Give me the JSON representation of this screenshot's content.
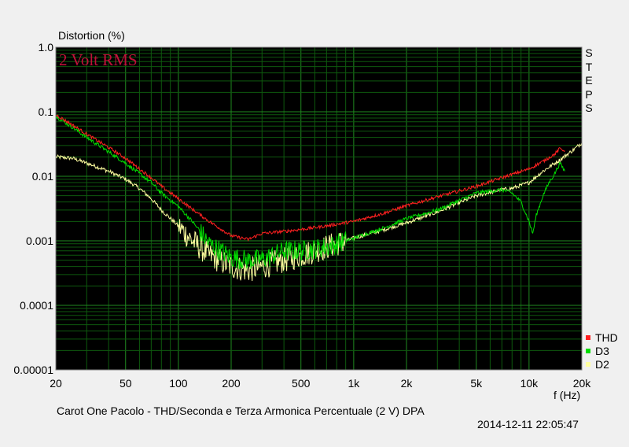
{
  "chart_data": {
    "type": "line",
    "title": "",
    "ylabel": "Distortion (%)",
    "xlabel": "f (Hz)",
    "annotation": "2 Volt RMS",
    "side_label": "STEPS",
    "caption": "Carot One Pacolo - THD/Seconda e Terza Armonica Percentuale (2 V)      DPA",
    "timestamp": "2014-12-11 22:05:47",
    "x_scale": "log",
    "y_scale": "log",
    "xlim": [
      20,
      20000
    ],
    "ylim": [
      1e-05,
      1.0
    ],
    "x_ticks": [
      {
        "value": 20,
        "label": "20"
      },
      {
        "value": 50,
        "label": "50"
      },
      {
        "value": 100,
        "label": "100"
      },
      {
        "value": 200,
        "label": "200"
      },
      {
        "value": 500,
        "label": "500"
      },
      {
        "value": 1000,
        "label": "1k"
      },
      {
        "value": 2000,
        "label": "2k"
      },
      {
        "value": 5000,
        "label": "5k"
      },
      {
        "value": 10000,
        "label": "10k"
      },
      {
        "value": 20000,
        "label": "20k"
      }
    ],
    "y_ticks": [
      {
        "value": 1.0,
        "label": "1.0"
      },
      {
        "value": 0.1,
        "label": "0.1"
      },
      {
        "value": 0.01,
        "label": "0.01"
      },
      {
        "value": 0.001,
        "label": "0.001"
      },
      {
        "value": 0.0001,
        "label": "0.0001"
      },
      {
        "value": 1e-05,
        "label": "0.00001"
      }
    ],
    "grid": true,
    "legend_position": "bottom-right",
    "series": [
      {
        "name": "THD",
        "color": "#ff2020",
        "x": [
          20,
          25,
          30,
          40,
          50,
          60,
          70,
          80,
          100,
          120,
          150,
          200,
          250,
          300,
          400,
          500,
          700,
          1000,
          1500,
          2000,
          3000,
          5000,
          7000,
          10000,
          12000,
          14000,
          15000,
          16000
        ],
        "y": [
          0.09,
          0.062,
          0.045,
          0.028,
          0.019,
          0.013,
          0.0095,
          0.007,
          0.0045,
          0.0031,
          0.002,
          0.0012,
          0.00105,
          0.0013,
          0.0014,
          0.0015,
          0.0017,
          0.002,
          0.0027,
          0.0035,
          0.0048,
          0.007,
          0.0095,
          0.013,
          0.017,
          0.022,
          0.027,
          0.025
        ]
      },
      {
        "name": "D3",
        "color": "#00dd00",
        "x": [
          20,
          25,
          30,
          40,
          50,
          60,
          70,
          80,
          100,
          120,
          150,
          200,
          250,
          300,
          350,
          400,
          500,
          700,
          1000,
          1500,
          2000,
          3000,
          5000,
          7000,
          8000,
          9000,
          10000,
          10500,
          11000,
          12000,
          13000,
          14000,
          15000,
          16000
        ],
        "y": [
          0.085,
          0.057,
          0.04,
          0.024,
          0.016,
          0.011,
          0.008,
          0.0055,
          0.0034,
          0.002,
          0.0009,
          0.00055,
          0.0005,
          0.00052,
          0.0006,
          0.0007,
          0.0007,
          0.0008,
          0.0011,
          0.0016,
          0.0022,
          0.003,
          0.0055,
          0.0062,
          0.0055,
          0.004,
          0.002,
          0.0013,
          0.0025,
          0.005,
          0.008,
          0.011,
          0.016,
          0.012
        ]
      },
      {
        "name": "D2",
        "color": "#ffffa0",
        "x": [
          20,
          25,
          30,
          40,
          50,
          60,
          70,
          80,
          100,
          120,
          150,
          200,
          250,
          300,
          400,
          500,
          700,
          1000,
          1500,
          2000,
          3000,
          5000,
          7000,
          8000,
          10000,
          12000,
          15000,
          18000,
          20000
        ],
        "y": [
          0.02,
          0.019,
          0.016,
          0.012,
          0.009,
          0.0065,
          0.0045,
          0.003,
          0.0017,
          0.001,
          0.0006,
          0.0004,
          0.00035,
          0.0004,
          0.0005,
          0.0006,
          0.0008,
          0.0011,
          0.0015,
          0.0019,
          0.0028,
          0.005,
          0.0062,
          0.0065,
          0.008,
          0.012,
          0.018,
          0.026,
          0.033
        ]
      }
    ]
  }
}
